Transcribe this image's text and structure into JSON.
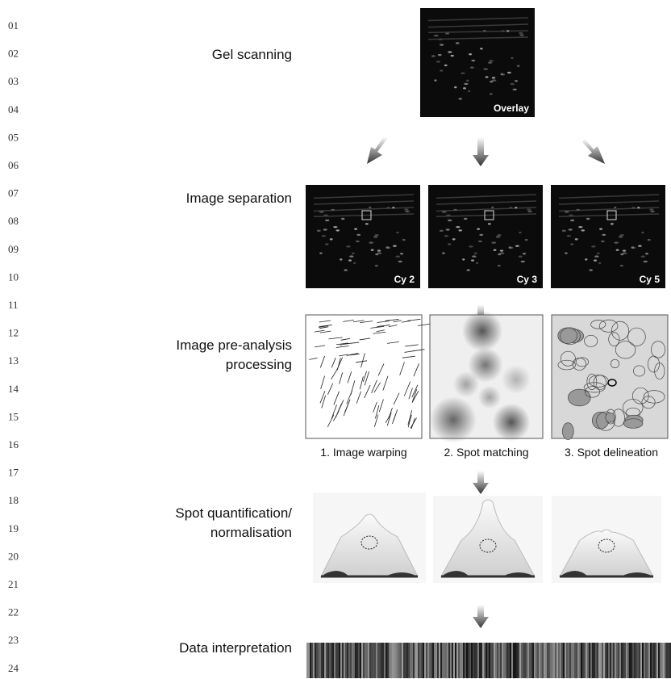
{
  "line_numbers": [
    "01",
    "02",
    "03",
    "04",
    "05",
    "06",
    "07",
    "08",
    "09",
    "10",
    "11",
    "12",
    "13",
    "14",
    "15",
    "16",
    "17",
    "18",
    "19",
    "20",
    "21",
    "22",
    "23",
    "24"
  ],
  "stages": [
    {
      "label": "Gel scanning"
    },
    {
      "label": "Image separation"
    },
    {
      "label": "Image pre-analysis",
      "label_line2": "processing"
    },
    {
      "label": "Spot quantification/",
      "label_line2": "normalisation"
    },
    {
      "label": "Data interpretation"
    }
  ],
  "images": {
    "overlay": "Overlay",
    "channels": [
      "Cy 2",
      "Cy 3",
      "Cy 5"
    ],
    "steps": [
      "1. Image warping",
      "2. Spot matching",
      "3. Spot delineation"
    ]
  }
}
